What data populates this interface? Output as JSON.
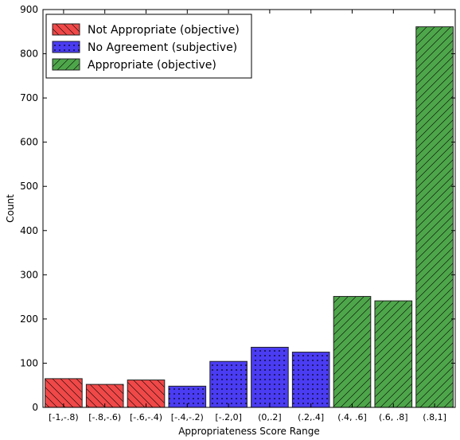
{
  "chart_data": {
    "type": "bar",
    "categories": [
      "[-1,-.8)",
      "[-.8,-.6)",
      "[-.6,-.4)",
      "[-.4,-.2)",
      "[-.2,0]",
      "(0,.2]",
      "(.2,.4]",
      "(.4, .6]",
      "(.6, .8]",
      "(.8,1]"
    ],
    "values": [
      65,
      52,
      62,
      48,
      104,
      136,
      125,
      251,
      241,
      861
    ],
    "group": [
      0,
      0,
      0,
      1,
      1,
      1,
      1,
      2,
      2,
      2
    ],
    "series": [
      {
        "name": "Not Appropriate (objective)",
        "color": "#f04848",
        "pattern": "hatch-back"
      },
      {
        "name": "No Agreement (subjective)",
        "color": "#4a3cf2",
        "pattern": "dots"
      },
      {
        "name": "Appropriate (objective)",
        "color": "#4ea64a",
        "pattern": "hatch-forward"
      }
    ],
    "title": "",
    "xlabel": "Appropriateness Score Range",
    "ylabel": "Count",
    "ylim": [
      0,
      900
    ],
    "yticks": [
      0,
      100,
      200,
      300,
      400,
      500,
      600,
      700,
      800,
      900
    ],
    "grid": false,
    "legend": "top-left"
  }
}
